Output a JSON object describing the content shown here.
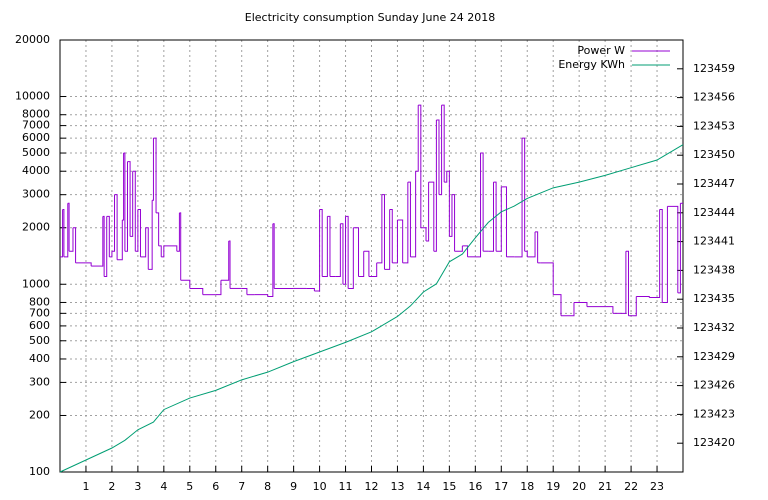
{
  "chart_data": {
    "type": "line",
    "title": "Electricity consumption Sunday June 24 2018",
    "xlim": [
      0,
      24
    ],
    "xticks": [
      1,
      2,
      3,
      4,
      5,
      6,
      7,
      8,
      9,
      10,
      11,
      12,
      13,
      14,
      15,
      16,
      17,
      18,
      19,
      20,
      21,
      22,
      23
    ],
    "ylim": [
      100,
      20000
    ],
    "ylog": true,
    "yticks": [
      100,
      200,
      300,
      400,
      500,
      600,
      700,
      800,
      1000,
      2000,
      3000,
      4000,
      5000,
      6000,
      7000,
      8000,
      10000,
      20000
    ],
    "y2lim": [
      123417,
      123462
    ],
    "y2ticks": [
      123420,
      123423,
      123426,
      123429,
      123432,
      123435,
      123438,
      123441,
      123444,
      123447,
      123450,
      123453,
      123456,
      123459
    ],
    "grid": true,
    "legend": "top-right",
    "series": [
      {
        "name": "Power W",
        "color": "#9400d3",
        "draw": "steps",
        "x": [
          0,
          0.1,
          0.15,
          0.3,
          0.35,
          0.5,
          0.6,
          1.0,
          1.2,
          1.6,
          1.65,
          1.7,
          1.8,
          1.9,
          2.0,
          2.1,
          2.2,
          2.4,
          2.45,
          2.5,
          2.6,
          2.7,
          2.8,
          2.9,
          3.0,
          3.1,
          3.3,
          3.4,
          3.5,
          3.55,
          3.6,
          3.7,
          3.8,
          3.9,
          4.0,
          4.5,
          4.6,
          4.65,
          5.0,
          5.5,
          6.0,
          6.2,
          6.5,
          6.55,
          7.0,
          7.2,
          7.5,
          8.0,
          8.2,
          8.25,
          9.0,
          9.5,
          9.8,
          10.0,
          10.1,
          10.3,
          10.4,
          10.6,
          10.8,
          10.9,
          11.0,
          11.1,
          11.3,
          11.5,
          11.7,
          11.9,
          12.2,
          12.4,
          12.5,
          12.7,
          12.8,
          13.0,
          13.2,
          13.4,
          13.5,
          13.7,
          13.8,
          13.9,
          14.1,
          14.2,
          14.4,
          14.5,
          14.6,
          14.7,
          14.8,
          14.9,
          15.0,
          15.1,
          15.2,
          15.5,
          15.7,
          16.0,
          16.2,
          16.3,
          16.5,
          16.7,
          16.8,
          17.0,
          17.2,
          17.5,
          17.8,
          17.9,
          18.0,
          18.3,
          18.4,
          18.5,
          19.0,
          19.3,
          19.8,
          20.3,
          21.0,
          21.3,
          21.6,
          21.8,
          21.9,
          22.2,
          22.7,
          23.1,
          23.2,
          23.4,
          23.8,
          23.9,
          24
        ],
        "values": [
          1400,
          2500,
          1400,
          2700,
          1500,
          2000,
          1300,
          1300,
          1250,
          1250,
          2300,
          1100,
          2300,
          1400,
          1500,
          3000,
          1350,
          2200,
          5000,
          1500,
          4500,
          1800,
          4000,
          1500,
          2500,
          1400,
          2000,
          1200,
          1200,
          2800,
          6000,
          2400,
          1600,
          1400,
          1600,
          1500,
          2400,
          1050,
          950,
          880,
          880,
          1050,
          1700,
          950,
          950,
          880,
          880,
          860,
          2100,
          950,
          950,
          950,
          920,
          2500,
          1100,
          2300,
          1100,
          1100,
          2100,
          1000,
          2300,
          950,
          2000,
          1100,
          1500,
          1100,
          1300,
          3000,
          1200,
          2500,
          1300,
          2200,
          1300,
          3500,
          1400,
          4000,
          9000,
          2000,
          1700,
          3500,
          1500,
          7500,
          3000,
          9000,
          3500,
          4000,
          1800,
          3000,
          1500,
          1600,
          1400,
          1400,
          5000,
          1500,
          1500,
          3500,
          1500,
          3300,
          1400,
          1400,
          6000,
          1500,
          1400,
          1900,
          1300,
          1300,
          880,
          680,
          800,
          760,
          760,
          700,
          700,
          1500,
          680,
          860,
          850,
          2500,
          800,
          2600,
          900,
          2700,
          2700
        ]
      },
      {
        "name": "Energy KWh",
        "color": "#009e73",
        "axis": "y2",
        "x": [
          0,
          1,
          2,
          2.5,
          3,
          3.6,
          4,
          5,
          6,
          7,
          8,
          9,
          10,
          11,
          12,
          13,
          13.5,
          14,
          14.5,
          15,
          15.5,
          16,
          16.5,
          17,
          17.5,
          18,
          19,
          20,
          21,
          22,
          23,
          24
        ],
        "values": [
          123417.0,
          123418.25,
          123419.5,
          123420.3,
          123421.4,
          123422.2,
          123423.5,
          123424.7,
          123425.5,
          123426.6,
          123427.4,
          123428.5,
          123429.5,
          123430.5,
          123431.6,
          123433.2,
          123434.3,
          123435.75,
          123436.6,
          123438.9,
          123439.7,
          123441.4,
          123443.0,
          123444.1,
          123444.7,
          123445.5,
          123446.6,
          123447.2,
          123447.9,
          123448.7,
          123449.5,
          123451.1
        ]
      }
    ]
  }
}
